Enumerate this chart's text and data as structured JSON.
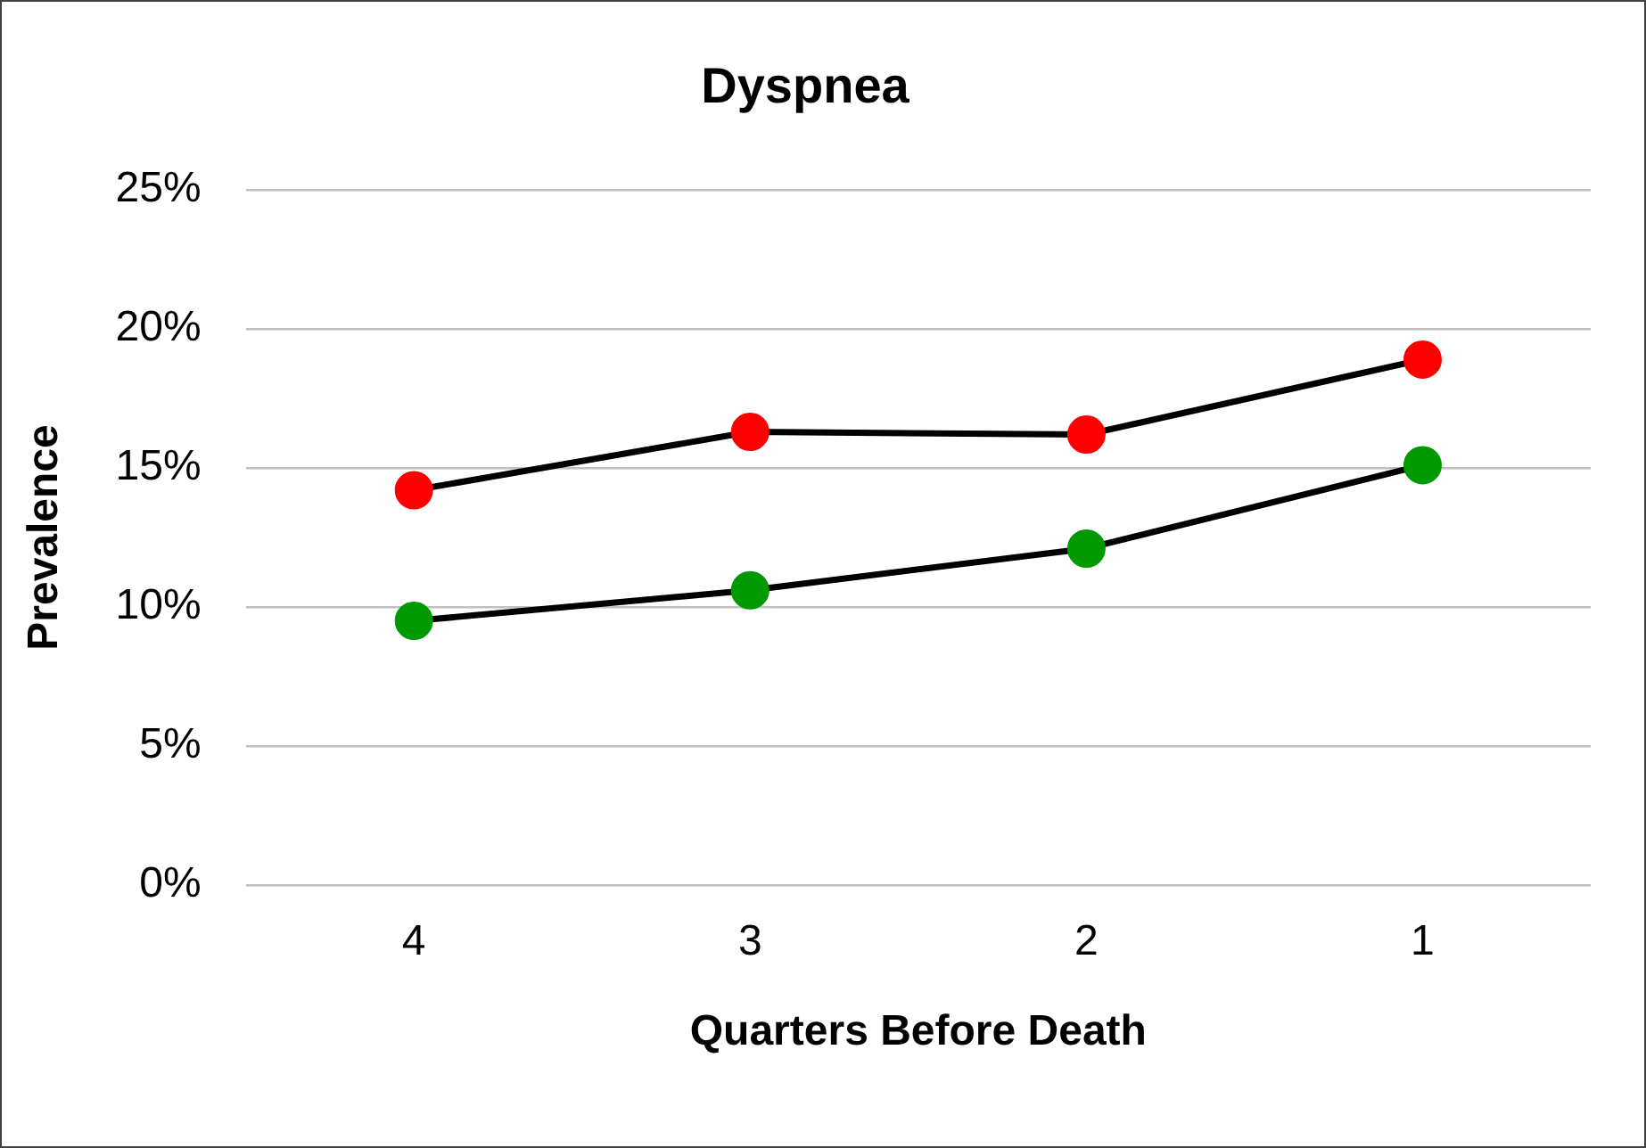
{
  "chart_data": {
    "type": "line",
    "title": "Dyspnea",
    "xlabel": "Quarters Before Death",
    "ylabel": "Prevalence",
    "categories": [
      "4",
      "3",
      "2",
      "1"
    ],
    "series": [
      {
        "color": "#ff0000",
        "values": [
          14.2,
          16.3,
          16.2,
          18.9
        ]
      },
      {
        "color": "#009900",
        "values": [
          9.5,
          10.6,
          12.1,
          15.1
        ]
      }
    ],
    "ylim": [
      0,
      25
    ],
    "yticks": [
      {
        "value": 0,
        "label": "0%"
      },
      {
        "value": 5,
        "label": "5%"
      },
      {
        "value": 10,
        "label": "10%"
      },
      {
        "value": 15,
        "label": "15%"
      },
      {
        "value": 20,
        "label": "20%"
      },
      {
        "value": 25,
        "label": "25%"
      }
    ],
    "grid": "y",
    "legend": false,
    "marker": "circle",
    "line_style": "solid"
  }
}
